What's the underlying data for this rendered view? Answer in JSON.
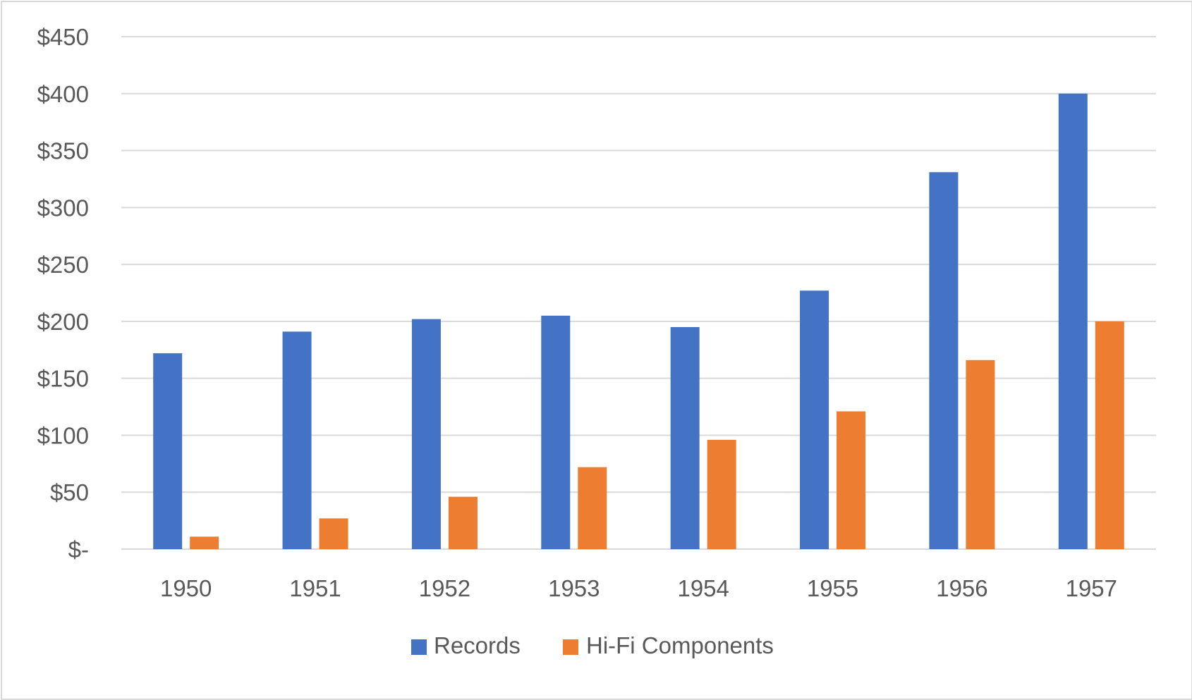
{
  "chart_data": {
    "type": "bar",
    "categories": [
      "1950",
      "1951",
      "1952",
      "1953",
      "1954",
      "1955",
      "1956",
      "1957"
    ],
    "series": [
      {
        "name": "Records",
        "color": "#4472C4",
        "values": [
          172,
          191,
          202,
          205,
          195,
          227,
          331,
          400
        ]
      },
      {
        "name": "Hi-Fi Components",
        "color": "#ED7D31",
        "values": [
          11,
          27,
          46,
          72,
          96,
          121,
          166,
          200
        ]
      }
    ],
    "y_ticks": [
      {
        "value": 0,
        "label": "$-"
      },
      {
        "value": 50,
        "label": "$50"
      },
      {
        "value": 100,
        "label": "$100"
      },
      {
        "value": 150,
        "label": "$150"
      },
      {
        "value": 200,
        "label": "$200"
      },
      {
        "value": 250,
        "label": "$250"
      },
      {
        "value": 300,
        "label": "$300"
      },
      {
        "value": 350,
        "label": "$350"
      },
      {
        "value": 400,
        "label": "$400"
      },
      {
        "value": 450,
        "label": "$450"
      }
    ],
    "ylim": [
      0,
      450
    ],
    "grid": true,
    "legend_position": "bottom",
    "gridline_color": "#d9d9d9"
  }
}
